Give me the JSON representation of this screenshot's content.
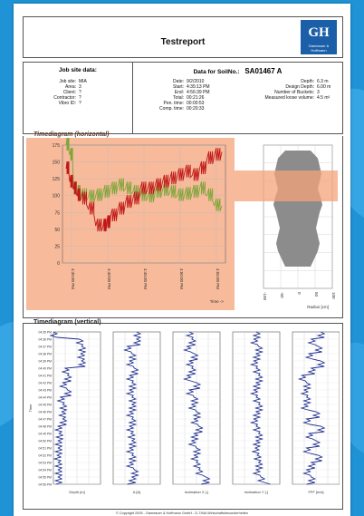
{
  "report": {
    "title": "Testreport",
    "logo": {
      "letters": "GH",
      "caption": "Gameauer & Hoffmann"
    },
    "jobsite": {
      "heading": "Job site data:",
      "rows": [
        {
          "k": "Job site:",
          "v": "MIA"
        },
        {
          "k": "Area:",
          "v": "3"
        },
        {
          "k": "Client:",
          "v": "?"
        },
        {
          "k": "Contractor:",
          "v": "?"
        },
        {
          "k": "Vibro ID:",
          "v": "?"
        }
      ]
    },
    "soil": {
      "heading": "Data for SoilNo.:",
      "serial": "SA01467 A",
      "times": [
        {
          "k": "Date:",
          "v": "9/2/2010"
        },
        {
          "k": "Start:",
          "v": "4:35:13 PM"
        },
        {
          "k": "End:",
          "v": "4:56:39 PM"
        },
        {
          "k": "Total:",
          "v": "00:21:26"
        },
        {
          "k": "Pen. time:",
          "v": "00:00:53"
        },
        {
          "k": "Comp. time:",
          "v": "00:20:33"
        }
      ],
      "depths": [
        {
          "k": "Depth:",
          "v": "6.3 m"
        },
        {
          "k": "Design Depth:",
          "v": "6.00 m"
        },
        {
          "k": "Number of Buckets:",
          "v": "3"
        },
        {
          "k": "Measured loose volume:",
          "v": "4.5 m³"
        }
      ]
    },
    "sections": {
      "horizontal": "Timediagram (horizontal)",
      "vertical": "Timediagram (vertical)"
    },
    "footer": "© Copyright 2005 - Gameauer & Hoffmann GmbH - D-7/MA Wirtschaftsbesonderheiten",
    "colors": {
      "page_bg": "#1f93d6",
      "highlight": "#f4a37a",
      "red_series": "#c01818",
      "green_series": "#7ea63a",
      "blue_series": "#1c2d8c",
      "grey_profile": "#8c8c8c"
    }
  },
  "chart_data": [
    {
      "type": "line",
      "title": "Timediagram (horizontal)",
      "xlabel": "Time ->",
      "ylabel": "",
      "ylim": [
        0,
        175
      ],
      "yticks": [
        "175",
        "150",
        "125",
        "100",
        "75",
        "50",
        "25",
        "0"
      ],
      "xticks": [
        "4:35:00 PM",
        "4:40:00 PM",
        "4:45:00 PM",
        "4:50:00 PM",
        "4:55:00 PM"
      ],
      "series": [
        {
          "name": "red",
          "x": [
            0,
            0.5,
            1,
            1.5,
            2,
            3,
            4,
            5,
            5.5,
            6,
            7,
            8,
            9,
            10,
            11,
            12,
            13,
            14,
            15,
            16,
            17,
            18,
            19,
            20,
            21
          ],
          "values": [
            140,
            120,
            110,
            100,
            95,
            80,
            55,
            55,
            60,
            70,
            80,
            90,
            95,
            110,
            110,
            115,
            120,
            125,
            130,
            135,
            130,
            140,
            155,
            160,
            165
          ]
        },
        {
          "name": "green",
          "x": [
            0,
            0.5,
            1,
            1.5,
            2,
            3,
            4,
            5,
            6,
            7,
            8,
            9,
            10,
            11,
            12,
            13,
            14,
            15,
            16,
            17,
            18,
            19,
            20,
            21
          ],
          "values": [
            175,
            160,
            110,
            105,
            100,
            98,
            100,
            105,
            110,
            115,
            110,
            105,
            100,
            98,
            105,
            108,
            105,
            100,
            102,
            105,
            110,
            100,
            85,
            85
          ]
        }
      ]
    },
    {
      "type": "area",
      "title": "",
      "xlabel": "Radius [cm]",
      "ylim": [
        0,
        8
      ],
      "xticks": [
        "-100",
        "-50",
        "0",
        "50",
        "100"
      ]
    },
    {
      "type": "line",
      "title": "Timediagram (vertical)",
      "panels": [
        "Depth [m]",
        "A [A]",
        "Inclination X [-]",
        "Inclination Y [-]",
        "FFF [m/s]"
      ],
      "ylabel": "Time",
      "yticks": [
        "04:35 PM",
        "04:36 PM",
        "04:37 PM",
        "04:38 PM",
        "04:39 PM",
        "04:40 PM",
        "04:41 PM",
        "04:42 PM",
        "04:43 PM",
        "04:44 PM",
        "04:45 PM",
        "04:46 PM",
        "04:47 PM",
        "04:48 PM",
        "04:49 PM",
        "04:50 PM",
        "04:51 PM",
        "04:52 PM",
        "04:53 PM",
        "04:54 PM",
        "04:55 PM",
        "04:56 PM"
      ]
    }
  ]
}
